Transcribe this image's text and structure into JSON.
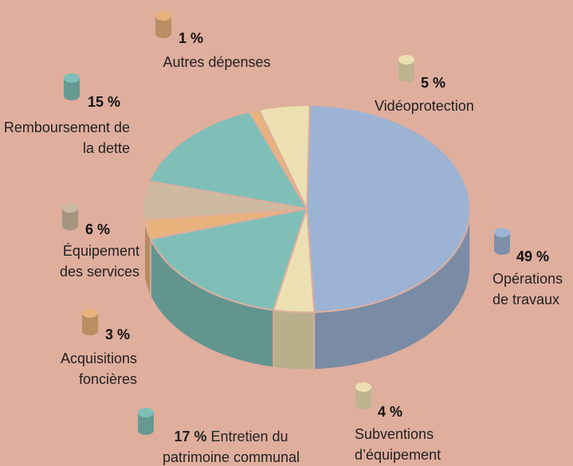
{
  "chart_data": {
    "type": "pie3d",
    "categories": [
      "Opérations de travaux",
      "Subventions d’équipement",
      "Entretien du patrimoine communal",
      "Acquisitions foncières",
      "Équipement des services",
      "Remboursement de la dette",
      "Autres dépenses",
      "Vidéoprotection"
    ],
    "values": [
      49,
      4,
      17,
      3,
      6,
      15,
      1,
      5
    ],
    "value_labels": [
      "49 %",
      "4 %",
      "17 %",
      "3 %",
      "6 %",
      "15 %",
      "1 %",
      "5 %"
    ],
    "colors": [
      "#9db3d3",
      "#ece0b2",
      "#7fbfb8",
      "#e8b27c",
      "#cdbaa1",
      "#7fbfb8",
      "#e8b27c",
      "#ece0b2"
    ]
  }
}
